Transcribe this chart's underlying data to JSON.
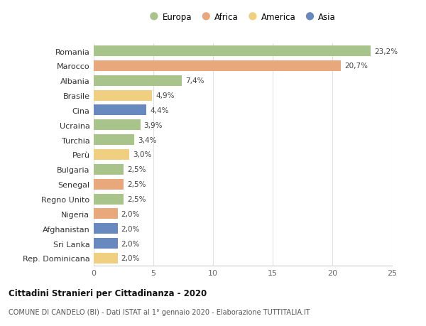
{
  "countries": [
    "Romania",
    "Marocco",
    "Albania",
    "Brasile",
    "Cina",
    "Ucraina",
    "Turchia",
    "Perù",
    "Bulgaria",
    "Senegal",
    "Regno Unito",
    "Nigeria",
    "Afghanistan",
    "Sri Lanka",
    "Rep. Dominicana"
  ],
  "values": [
    23.2,
    20.7,
    7.4,
    4.9,
    4.4,
    3.9,
    3.4,
    3.0,
    2.5,
    2.5,
    2.5,
    2.0,
    2.0,
    2.0,
    2.0
  ],
  "labels": [
    "23,2%",
    "20,7%",
    "7,4%",
    "4,9%",
    "4,4%",
    "3,9%",
    "3,4%",
    "3,0%",
    "2,5%",
    "2,5%",
    "2,5%",
    "2,0%",
    "2,0%",
    "2,0%",
    "2,0%"
  ],
  "continents": [
    "Europa",
    "Africa",
    "Europa",
    "America",
    "Asia",
    "Europa",
    "Europa",
    "America",
    "Europa",
    "Africa",
    "Europa",
    "Africa",
    "Asia",
    "Asia",
    "America"
  ],
  "colors": {
    "Europa": "#a8c48a",
    "Africa": "#e8a87c",
    "America": "#f0d080",
    "Asia": "#6888c0"
  },
  "title": "Cittadini Stranieri per Cittadinanza - 2020",
  "subtitle": "COMUNE DI CANDELO (BI) - Dati ISTAT al 1° gennaio 2020 - Elaborazione TUTTITALIA.IT",
  "xlim": [
    0,
    25
  ],
  "xticks": [
    0,
    5,
    10,
    15,
    20,
    25
  ],
  "background_color": "#ffffff",
  "bar_height": 0.72,
  "grid_color": "#e0e0e0"
}
